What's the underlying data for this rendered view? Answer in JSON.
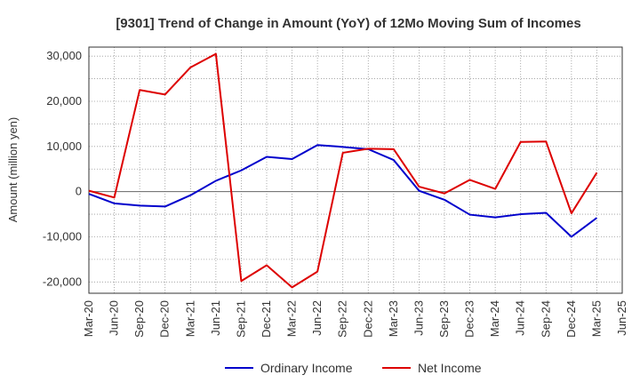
{
  "chart_data": {
    "type": "line",
    "title": "[9301]  Trend of Change in Amount (YoY) of 12Mo Moving Sum of Incomes",
    "xlabel": "",
    "ylabel": "Amount (million yen)",
    "categories": [
      "Mar-20",
      "Jun-20",
      "Sep-20",
      "Dec-20",
      "Mar-21",
      "Jun-21",
      "Sep-21",
      "Dec-21",
      "Mar-22",
      "Jun-22",
      "Sep-22",
      "Dec-22",
      "Mar-23",
      "Jun-23",
      "Sep-23",
      "Dec-23",
      "Mar-24",
      "Jun-24",
      "Sep-24",
      "Dec-24",
      "Mar-25",
      "Jun-25"
    ],
    "ylim": [
      -22500,
      32000
    ],
    "yticks": [
      30000,
      20000,
      10000,
      0,
      -10000,
      -20000
    ],
    "ytick_labels": [
      "30,000",
      "20,000",
      "10,000",
      "0",
      "-10,000",
      "-20,000"
    ],
    "grid": true,
    "legend_position": "bottom",
    "series": [
      {
        "name": "Ordinary Income",
        "color": "#0000cc",
        "values": [
          -500,
          -2600,
          -3100,
          -3300,
          -800,
          2400,
          4700,
          7700,
          7200,
          10300,
          9900,
          9400,
          7000,
          200,
          -1800,
          -5100,
          -5700,
          -5000,
          -4700,
          -10000,
          -5800,
          null
        ]
      },
      {
        "name": "Net Income",
        "color": "#dd0000",
        "values": [
          200,
          -1300,
          22500,
          21500,
          27500,
          30500,
          -19800,
          -16300,
          -21200,
          -17700,
          8600,
          9500,
          9400,
          1100,
          -400,
          2600,
          600,
          11000,
          11100,
          -4800,
          4200,
          null
        ]
      }
    ]
  }
}
